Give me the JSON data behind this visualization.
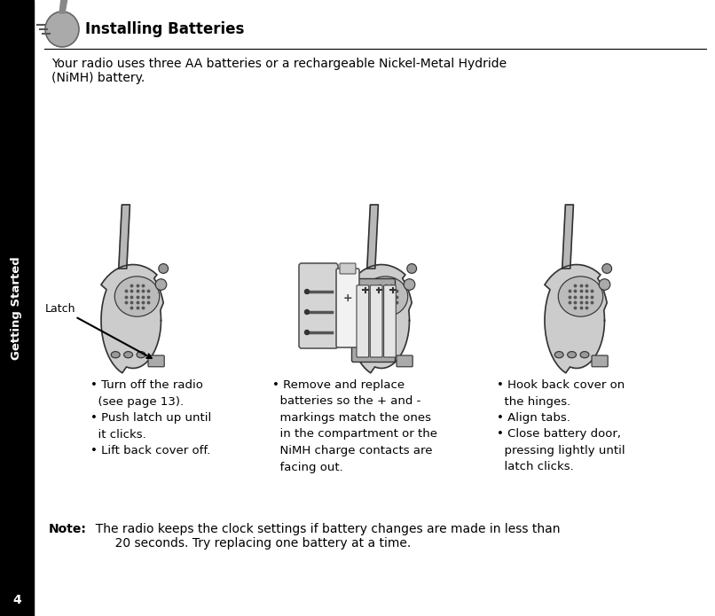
{
  "bg_color": "#ffffff",
  "left_bar_color": "#000000",
  "sidebar_text": "Getting Started",
  "sidebar_text_color": "#ffffff",
  "page_number": "4",
  "title": "Installing Batteries",
  "title_fontsize": 12,
  "intro_line1": "Your radio uses three AA batteries or a rechargeable Nickel-Metal Hydride",
  "intro_line2": "(NiMH) battery.",
  "intro_fontsize": 10,
  "note_label": "Note:",
  "note_body": "  The radio keeps the clock settings if battery changes are made in less than\n       20 seconds. Try replacing one battery at a time.",
  "note_fontsize": 10,
  "col1_text": "• Turn off the radio\n  (see page 13).\n• Push latch up until\n  it clicks.\n• Lift back cover off.",
  "col2_text": "• Remove and replace\n  batteries so the + and -\n  markings match the ones\n  in the compartment or the\n  NiMH charge contacts are\n  facing out.",
  "col3_text": "• Hook back cover on\n  the hinges.\n• Align tabs.\n• Close battery door,\n  pressing lightly until\n  latch clicks.",
  "bullet_fontsize": 9.5,
  "latch_label": "Latch",
  "latch_fontsize": 9,
  "fig_width": 8.06,
  "fig_height": 6.95,
  "dpi": 100
}
